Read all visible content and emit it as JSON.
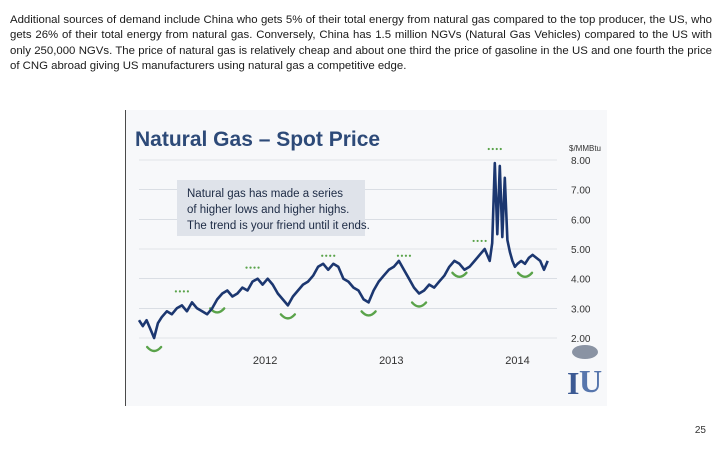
{
  "slide": {
    "paragraph": " Additional sources of demand include China who gets 5% of their total energy from natural gas compared to the top producer, the US, who gets 26% of their total energy from natural gas.  Conversely, China has 1.5 million NGVs (Natural Gas Vehicles) compared to the US with only 250,000 NGVs.  The price of natural gas is relatively cheap and about one third the price of gasoline in the US and one fourth the price of CNG abroad giving US manufacturers using natural gas a competitive edge.",
    "page_number": "25"
  },
  "colors": {
    "title": "#2d4a78",
    "line": "#1c3770",
    "highs": "#5aa34a",
    "lows": "#5aa34a",
    "callout_bg": "#dfe3ea",
    "grid": "#c9ced6"
  },
  "chart_data": {
    "type": "line",
    "title": "Natural Gas – Spot Price",
    "ylabel": "$/MMBtu",
    "ylim": [
      2.0,
      8.0
    ],
    "yticks": [
      "2.00",
      "3.00",
      "4.00",
      "5.00",
      "6.00",
      "7.00",
      "8.00"
    ],
    "xticks": [
      {
        "label": "2012",
        "x": 2012.0
      },
      {
        "label": "2013",
        "x": 2013.0
      },
      {
        "label": "2014",
        "x": 2014.0
      }
    ],
    "xlim": [
      2011.0,
      2014.25
    ],
    "grid": true,
    "annotation": [
      "Natural gas has made a series",
      "of higher lows and higher highs.",
      "The trend is your friend until it ends."
    ],
    "series": [
      {
        "x": [
          2011.0,
          2011.03,
          2011.06,
          2011.09,
          2011.12,
          2011.15,
          2011.18,
          2011.22,
          2011.26,
          2011.3,
          2011.34,
          2011.38,
          2011.42,
          2011.46,
          2011.5,
          2011.54,
          2011.58,
          2011.62,
          2011.66,
          2011.7,
          2011.74,
          2011.78,
          2011.82,
          2011.86,
          2011.9,
          2011.94,
          2011.98,
          2012.02,
          2012.06,
          2012.1,
          2012.14,
          2012.18,
          2012.22,
          2012.26,
          2012.3,
          2012.34,
          2012.38,
          2012.42,
          2012.46,
          2012.5,
          2012.54,
          2012.58,
          2012.62,
          2012.66,
          2012.7,
          2012.74,
          2012.78,
          2012.82,
          2012.86,
          2012.9,
          2012.94,
          2012.98,
          2013.02,
          2013.06,
          2013.1,
          2013.14,
          2013.18,
          2013.22,
          2013.26,
          2013.3,
          2013.34,
          2013.38,
          2013.42,
          2013.46,
          2013.5,
          2013.54,
          2013.58,
          2013.62,
          2013.66,
          2013.7,
          2013.74,
          2013.78,
          2013.8,
          2013.82,
          2013.84,
          2013.86,
          2013.88,
          2013.9,
          2013.92,
          2013.94,
          2013.96,
          2013.98,
          2014.0,
          2014.03,
          2014.06,
          2014.09,
          2014.12,
          2014.15,
          2014.18,
          2014.21,
          2014.24
        ],
        "values": [
          2.6,
          2.4,
          2.6,
          2.3,
          2.0,
          2.5,
          2.7,
          2.9,
          2.8,
          3.0,
          3.1,
          2.9,
          3.2,
          3.0,
          2.9,
          2.8,
          3.0,
          3.3,
          3.5,
          3.6,
          3.4,
          3.5,
          3.7,
          3.6,
          3.9,
          4.0,
          3.8,
          4.0,
          3.8,
          3.5,
          3.3,
          3.1,
          3.4,
          3.6,
          3.8,
          3.9,
          4.1,
          4.4,
          4.5,
          4.3,
          4.5,
          4.4,
          4.0,
          3.9,
          3.7,
          3.6,
          3.3,
          3.2,
          3.6,
          3.9,
          4.1,
          4.3,
          4.4,
          4.6,
          4.3,
          4.0,
          3.7,
          3.5,
          3.6,
          3.8,
          3.7,
          3.9,
          4.1,
          4.4,
          4.6,
          4.5,
          4.3,
          4.4,
          4.6,
          4.8,
          5.0,
          4.6,
          5.2,
          7.9,
          5.5,
          7.8,
          5.4,
          7.4,
          5.3,
          4.9,
          4.6,
          4.4,
          4.5,
          4.6,
          4.5,
          4.7,
          4.8,
          4.7,
          4.6,
          4.3,
          4.6
        ]
      }
    ]
  }
}
